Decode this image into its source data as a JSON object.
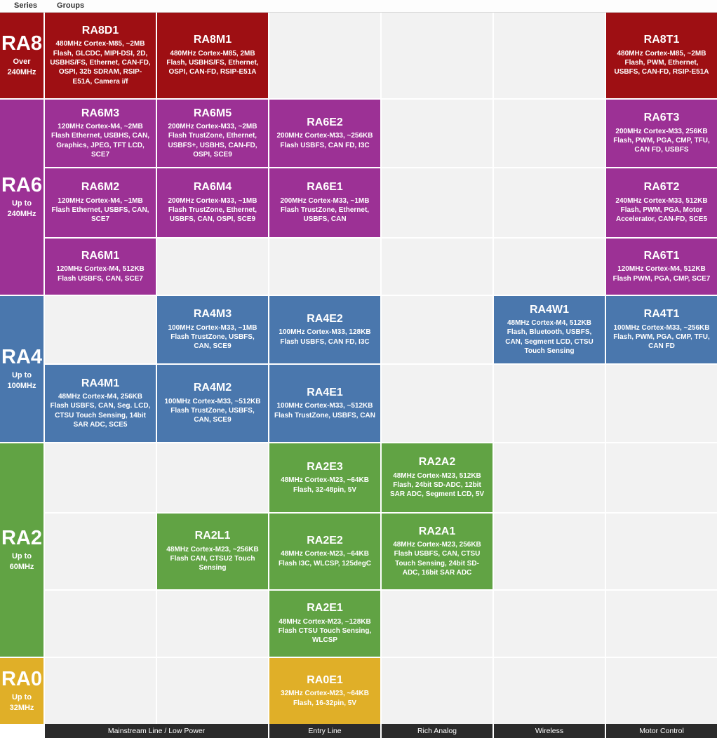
{
  "tabs": [
    {
      "label": "Series"
    },
    {
      "label": "Groups"
    }
  ],
  "series": [
    {
      "id": "ra8",
      "label": "RA8",
      "freq": "Over 240MHz",
      "color": "#9e0f13",
      "row_start": 1,
      "row_end": 1
    },
    {
      "id": "ra6",
      "label": "RA6",
      "freq": "Up to 240MHz",
      "color": "#9c3195",
      "row_start": 2,
      "row_end": 4
    },
    {
      "id": "ra4",
      "label": "RA4",
      "freq": "Up to 100MHz",
      "color": "#4a77ad",
      "row_start": 5,
      "row_end": 6
    },
    {
      "id": "ra2",
      "label": "RA2",
      "freq": "Up to 60MHz",
      "color": "#61a344",
      "row_start": 7,
      "row_end": 9
    },
    {
      "id": "ra0",
      "label": "RA0",
      "freq": "Up to 32MHz",
      "color": "#e0af28",
      "row_start": 10,
      "row_end": 10
    }
  ],
  "cells": [
    {
      "series": "ra8",
      "row": 1,
      "col": 1,
      "title": "RA8D1",
      "desc": "480MHz Cortex-M85, ~2MB Flash, GLCDC, MIPI-DSI, 2D, USBHS/FS, Ethernet, CAN-FD, OSPI, 32b SDRAM, RSIP-E51A, Camera i/f"
    },
    {
      "series": "ra8",
      "row": 1,
      "col": 2,
      "title": "RA8M1",
      "desc": "480MHz Cortex-M85, 2MB Flash, USBHS/FS, Ethernet, OSPI, CAN-FD, RSIP-E51A"
    },
    {
      "series": "ra8",
      "row": 1,
      "col": 6,
      "title": "RA8T1",
      "desc": "480MHz Cortex-M85, ~2MB Flash, PWM, Ethernet, USBFS, CAN-FD, RSIP-E51A"
    },
    {
      "series": "ra6",
      "row": 2,
      "col": 1,
      "title": "RA6M3",
      "desc": "120MHz Cortex-M4, ~2MB Flash Ethernet, USBHS, CAN, Graphics, JPEG, TFT LCD, SCE7"
    },
    {
      "series": "ra6",
      "row": 2,
      "col": 2,
      "title": "RA6M5",
      "desc": "200MHz Cortex-M33, ~2MB Flash TrustZone, Ethernet, USBFS+, USBHS, CAN-FD, OSPI, SCE9"
    },
    {
      "series": "ra6",
      "row": 2,
      "col": 3,
      "title": "RA6E2",
      "desc": "200MHz Cortex-M33, ~256KB Flash USBFS, CAN FD, I3C"
    },
    {
      "series": "ra6",
      "row": 2,
      "col": 6,
      "title": "RA6T3",
      "desc": "200MHz Cortex-M33, 256KB Flash, PWM, PGA, CMP, TFU, CAN FD, USBFS"
    },
    {
      "series": "ra6",
      "row": 3,
      "col": 1,
      "title": "RA6M2",
      "desc": "120MHz Cortex-M4, ~1MB Flash Ethernet, USBFS, CAN, SCE7"
    },
    {
      "series": "ra6",
      "row": 3,
      "col": 2,
      "title": "RA6M4",
      "desc": "200MHz Cortex-M33, ~1MB Flash TrustZone, Ethernet, USBFS, CAN, OSPI, SCE9"
    },
    {
      "series": "ra6",
      "row": 3,
      "col": 3,
      "title": "RA6E1",
      "desc": "200MHz Cortex-M33, ~1MB Flash TrustZone, Ethernet, USBFS, CAN"
    },
    {
      "series": "ra6",
      "row": 3,
      "col": 6,
      "title": "RA6T2",
      "desc": "240MHz Cortex-M33, 512KB Flash, PWM, PGA, Motor Accelerator, CAN-FD, SCE5"
    },
    {
      "series": "ra6",
      "row": 4,
      "col": 1,
      "title": "RA6M1",
      "desc": "120MHz Cortex-M4, 512KB Flash USBFS, CAN, SCE7"
    },
    {
      "series": "ra6",
      "row": 4,
      "col": 6,
      "title": "RA6T1",
      "desc": "120MHz Cortex-M4, 512KB Flash PWM, PGA, CMP, SCE7"
    },
    {
      "series": "ra4",
      "row": 5,
      "col": 2,
      "title": "RA4M3",
      "desc": "100MHz Cortex-M33, ~1MB Flash TrustZone, USBFS, CAN, SCE9"
    },
    {
      "series": "ra4",
      "row": 5,
      "col": 3,
      "title": "RA4E2",
      "desc": "100MHz Cortex-M33, 128KB Flash USBFS, CAN FD, I3C"
    },
    {
      "series": "ra4",
      "row": 5,
      "col": 5,
      "title": "RA4W1",
      "desc": "48MHz Cortex-M4, 512KB Flash, Bluetooth, USBFS, CAN, Segment LCD, CTSU Touch Sensing"
    },
    {
      "series": "ra4",
      "row": 5,
      "col": 6,
      "title": "RA4T1",
      "desc": "100MHz Cortex-M33, ~256KB Flash, PWM, PGA, CMP, TFU, CAN FD"
    },
    {
      "series": "ra4",
      "row": 6,
      "col": 1,
      "title": "RA4M1",
      "desc": "48MHz Cortex-M4, 256KB Flash USBFS, CAN, Seg. LCD, CTSU Touch Sensing, 14bit SAR ADC, SCE5"
    },
    {
      "series": "ra4",
      "row": 6,
      "col": 2,
      "title": "RA4M2",
      "desc": "100MHz Cortex-M33, ~512KB Flash TrustZone, USBFS, CAN, SCE9"
    },
    {
      "series": "ra4",
      "row": 6,
      "col": 3,
      "title": "RA4E1",
      "desc": "100MHz Cortex-M33, ~512KB Flash TrustZone, USBFS, CAN"
    },
    {
      "series": "ra2",
      "row": 7,
      "col": 3,
      "title": "RA2E3",
      "desc": "48MHz Cortex-M23, ~64KB Flash, 32-48pin, 5V"
    },
    {
      "series": "ra2",
      "row": 7,
      "col": 4,
      "title": "RA2A2",
      "desc": "48MHz Cortex-M23, 512KB Flash, 24bit SD-ADC, 12bit SAR ADC, Segment LCD, 5V"
    },
    {
      "series": "ra2",
      "row": 8,
      "col": 2,
      "title": "RA2L1",
      "desc": "48MHz Cortex-M23, ~256KB Flash CAN, CTSU2 Touch Sensing"
    },
    {
      "series": "ra2",
      "row": 8,
      "col": 3,
      "title": "RA2E2",
      "desc": "48MHz Cortex-M23, ~64KB Flash I3C, WLCSP, 125degC"
    },
    {
      "series": "ra2",
      "row": 8,
      "col": 4,
      "title": "RA2A1",
      "desc": "48MHz Cortex-M23, 256KB Flash USBFS, CAN, CTSU Touch Sensing, 24bit SD-ADC, 16bit SAR ADC"
    },
    {
      "series": "ra2",
      "row": 9,
      "col": 3,
      "title": "RA2E1",
      "desc": "48MHz Cortex-M23, ~128KB Flash CTSU Touch Sensing, WLCSP"
    },
    {
      "series": "ra0",
      "row": 10,
      "col": 3,
      "title": "RA0E1",
      "desc": "32MHz Cortex-M23, ~64KB Flash, 16-32pin, 5V"
    }
  ],
  "footer": {
    "segments": [
      {
        "label": "Mainstream Line / Low Power",
        "span": 2
      },
      {
        "label": "Entry Line",
        "span": 1
      },
      {
        "label": "Rich Analog",
        "span": 1
      },
      {
        "label": "Wireless",
        "span": 1
      },
      {
        "label": "Motor Control",
        "span": 1
      }
    ],
    "bar_color": "#2b2b2b"
  },
  "palette": {
    "empty_cell": "#f2f2f2",
    "tab_text": "#333333"
  }
}
